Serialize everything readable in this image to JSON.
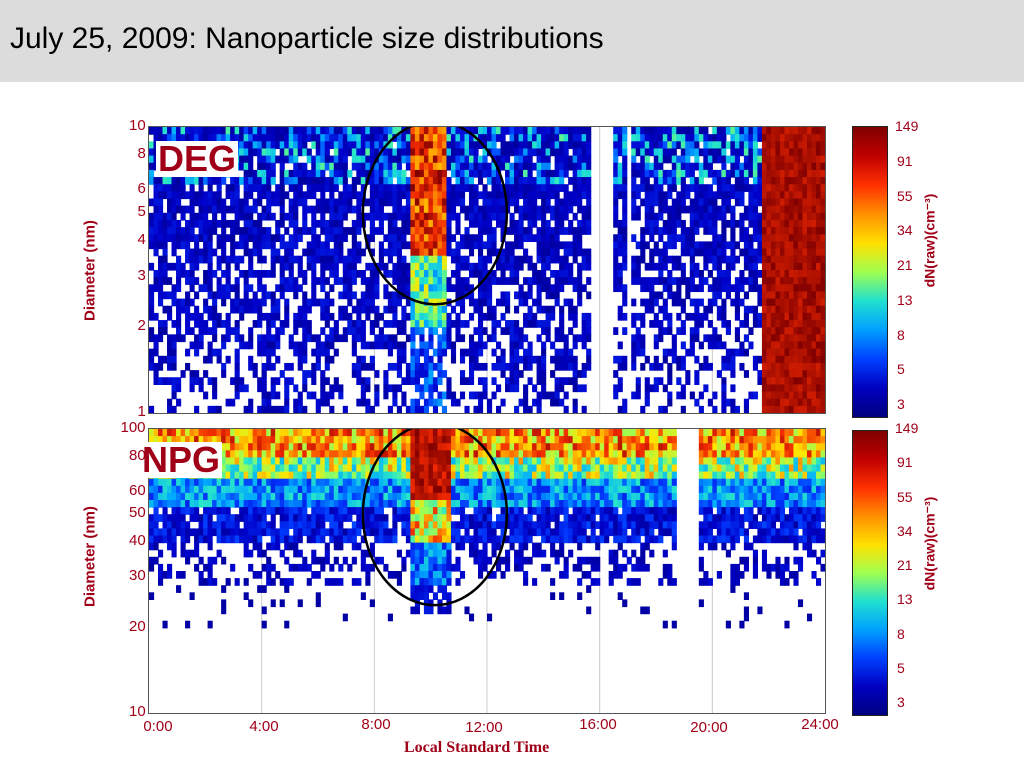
{
  "slide_title": "July 25, 2009: Nanoparticle size distributions",
  "chart_data": [
    {
      "type": "heatmap",
      "tag": "DEG",
      "ylabel": "Diameter (nm)",
      "yscale": "log",
      "ylim": [
        1,
        10
      ],
      "yticks": [
        "10",
        "8",
        "6",
        "5",
        "4",
        "3",
        "2",
        "1"
      ],
      "xlim": [
        0,
        24
      ],
      "xticks": [],
      "colorbar_label": "dN(raw)(cm⁻³)",
      "colorbar_ticks": [
        "149",
        "91",
        "55",
        "34",
        "21",
        "13",
        "8",
        "5",
        "3"
      ],
      "highlight_circle_hours": [
        9.5,
        10.8
      ],
      "data_gaps_hours": [
        [
          15.7,
          16.5
        ],
        [
          16.9,
          17.1
        ]
      ]
    },
    {
      "type": "heatmap",
      "tag": "NPG",
      "ylabel": "Diameter (nm)",
      "yscale": "log",
      "ylim": [
        10,
        100
      ],
      "yticks": [
        "100",
        "80",
        "60",
        "50",
        "40",
        "30",
        "20",
        "10"
      ],
      "xlim": [
        0,
        24
      ],
      "xlabel": "Local Standard Time",
      "xticks": [
        "0:00",
        "4:00",
        "8:00",
        "12:00",
        "16:00",
        "20:00",
        "24:00"
      ],
      "colorbar_label": "dN(raw)(cm⁻³)",
      "colorbar_ticks": [
        "149",
        "91",
        "55",
        "34",
        "21",
        "13",
        "8",
        "5",
        "3"
      ],
      "highlight_circle_hours": [
        9.5,
        10.8
      ],
      "data_gaps_hours": [
        [
          18.8,
          19.5
        ]
      ]
    }
  ]
}
